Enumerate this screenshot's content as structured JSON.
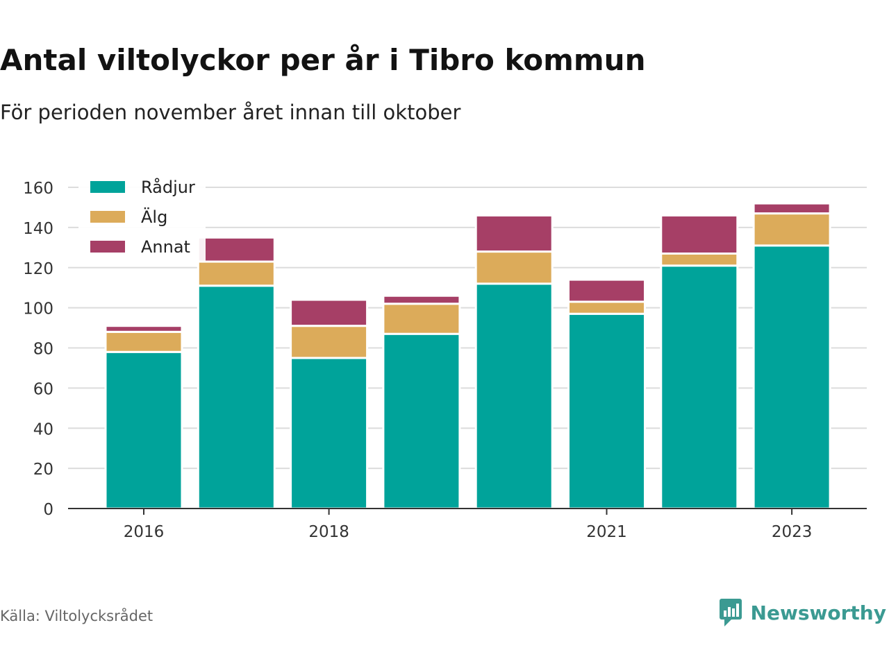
{
  "title": "Antal viltolyckor per år i Tibro kommun",
  "subtitle": "För perioden november året innan till oktober",
  "source": "Källa: Viltolycksrådet",
  "brand": "Newsworthy",
  "colors": {
    "radjur": "#00a39a",
    "alg": "#dcab5a",
    "annat": "#a63f66",
    "grid": "#dcdcdc",
    "axis": "#333333",
    "brand": "#3b9a92"
  },
  "chart_data": {
    "type": "bar",
    "stacked": true,
    "categories": [
      "2016",
      "2017",
      "2018",
      "2019",
      "2020",
      "2021",
      "2022",
      "2023"
    ],
    "x_tick_labels": [
      "2016",
      "",
      "2018",
      "",
      "",
      "2021",
      "",
      "2023"
    ],
    "series": [
      {
        "name": "Rådjur",
        "color_key": "radjur",
        "values": [
          78,
          111,
          75,
          87,
          112,
          97,
          121,
          131
        ]
      },
      {
        "name": "Älg",
        "color_key": "alg",
        "values": [
          10,
          12,
          16,
          15,
          16,
          6,
          6,
          16
        ]
      },
      {
        "name": "Annat",
        "color_key": "annat",
        "values": [
          3,
          12,
          13,
          4,
          18,
          11,
          19,
          5
        ]
      }
    ],
    "ylim": [
      0,
      160
    ],
    "yticks": [
      0,
      20,
      40,
      60,
      80,
      100,
      120,
      140,
      160
    ],
    "grid": true,
    "legend_position": "top-left"
  }
}
